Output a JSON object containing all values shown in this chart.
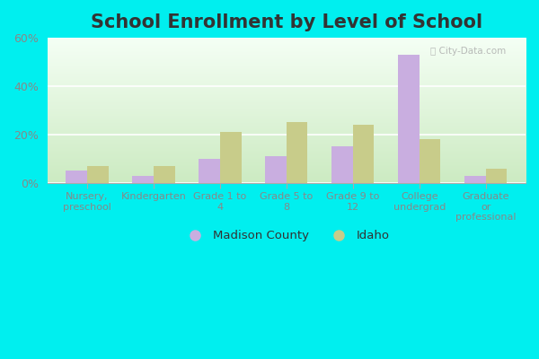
{
  "title": "School Enrollment by Level of School",
  "categories": [
    "Nursery,\npreschool",
    "Kindergarten",
    "Grade 1 to\n4",
    "Grade 5 to\n8",
    "Grade 9 to\n12",
    "College\nundergrad",
    "Graduate\nor\nprofessional"
  ],
  "madison_county": [
    5,
    3,
    10,
    11,
    15,
    53,
    3
  ],
  "idaho": [
    7,
    7,
    21,
    25,
    24,
    18,
    6
  ],
  "madison_color": "#c9aee0",
  "idaho_color": "#c8cc8a",
  "bg_top": "#f0f8f0",
  "bg_bottom": "#c8e8c0",
  "outer_background": "#00efef",
  "ylim": [
    0,
    60
  ],
  "yticks": [
    0,
    20,
    40,
    60
  ],
  "ytick_labels": [
    "0%",
    "20%",
    "40%",
    "60%"
  ],
  "legend_madison": "Madison County",
  "legend_idaho": "Idaho",
  "title_fontsize": 15,
  "bar_width": 0.32,
  "tick_color": "#888888",
  "spine_color": "#aaaaaa",
  "watermark": "ⓘ City-Data.com"
}
